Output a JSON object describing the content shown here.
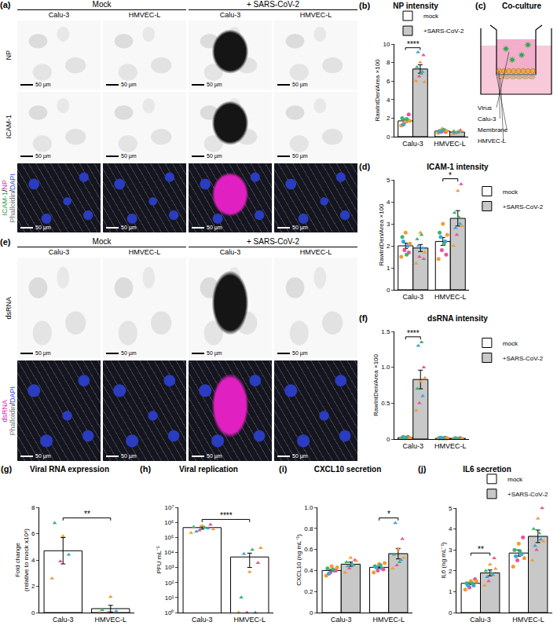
{
  "image_panels": [
    {
      "panel": "(a)",
      "groups": [
        "Mock",
        "+ SARS-CoV-2"
      ],
      "columns": [
        "Calu-3",
        "HMVEC-L",
        "Calu-3",
        "HMVEC-L"
      ],
      "rows": [
        [
          "NP"
        ],
        [
          "ICAM-1"
        ],
        [
          "ICAM-1/NP",
          "Phalloidin/DAPI"
        ]
      ],
      "scale_bar": "50 µm"
    },
    {
      "panel": "(e)",
      "groups": [
        "Mock",
        "+ SARS-CoV-2"
      ],
      "columns": [
        "Calu-3",
        "HMVEC-L",
        "Calu-3",
        "HMVEC-L"
      ],
      "rows": [
        [
          "dsRNA"
        ],
        [
          "dsRNA",
          "Phalloidin/DAPI"
        ]
      ],
      "scale_bar": "50 µm"
    }
  ],
  "diagram": {
    "panel": "(c)",
    "title": "Co-culture",
    "labels": {
      "virus": "Virus",
      "cells": "Calu-3",
      "membrane": "Membrane",
      "endothelium": "HMVEC-L"
    }
  },
  "chart_data": [
    {
      "type": "bar",
      "panel": "(b)",
      "title": "NP intensity",
      "y_label": "RawIntDen/Area ×100",
      "categories": [
        "Calu-3",
        "HMVEC-L"
      ],
      "series": [
        {
          "name": "mock",
          "color": "#ffffff",
          "marker": "circle",
          "values": [
            1.7,
            0.6
          ],
          "errors": [
            0.15,
            0.05
          ],
          "points": [
            [
              1.2,
              1.5,
              1.8,
              2.0,
              1.6,
              2.4,
              1.3,
              1.9,
              1.7
            ],
            [
              0.4,
              0.5,
              0.7,
              0.6,
              0.8,
              0.5,
              0.6,
              0.7,
              0.6
            ]
          ]
        },
        {
          "name": "+SARS-CoV-2",
          "color": "#c8c8c8",
          "marker": "triangle-up",
          "values": [
            7.3,
            0.5
          ],
          "errors": [
            0.45,
            0.05
          ],
          "points": [
            [
              6.0,
              6.5,
              7.0,
              7.5,
              8.0,
              8.8,
              9.1,
              6.8,
              5.9
            ],
            [
              0.3,
              0.4,
              0.5,
              0.6,
              0.5,
              0.7,
              0.4,
              0.5,
              0.6
            ]
          ]
        }
      ],
      "ylim": [
        0,
        10
      ],
      "yticks": [
        0,
        2,
        4,
        6,
        8,
        10
      ],
      "grid": false,
      "legend": "top right",
      "annotations": [
        {
          "category": "Calu-3",
          "text": "****"
        }
      ]
    },
    {
      "type": "bar",
      "panel": "(d)",
      "title": "ICAM-1 intensity",
      "y_label": "RawIntDen/Area ×100",
      "categories": [
        "Calu-3",
        "HMVEC-L"
      ],
      "series": [
        {
          "name": "mock",
          "color": "#ffffff",
          "marker": "circle",
          "values": [
            2.0,
            2.2
          ],
          "errors": [
            0.12,
            0.18
          ],
          "points": [
            [
              1.5,
              1.8,
              2.0,
              2.4,
              2.6,
              1.7,
              2.2,
              1.6,
              2.1
            ],
            [
              1.4,
              1.8,
              2.2,
              2.6,
              3.0,
              1.6,
              2.4,
              2.1,
              2.5
            ]
          ]
        },
        {
          "name": "+SARS-CoV-2",
          "color": "#c8c8c8",
          "marker": "triangle-up",
          "values": [
            1.9,
            3.25
          ],
          "errors": [
            0.16,
            0.35
          ],
          "points": [
            [
              1.2,
              1.5,
              1.9,
              2.3,
              2.6,
              1.4,
              2.0,
              2.5,
              1.7
            ],
            [
              2.0,
              2.5,
              3.0,
              3.5,
              4.5,
              4.8,
              2.8,
              3.3,
              2.9
            ]
          ]
        }
      ],
      "ylim": [
        0,
        5
      ],
      "yticks": [
        0,
        1,
        2,
        3,
        4,
        5
      ],
      "grid": false,
      "legend": "right",
      "annotations": [
        {
          "category": "HMVEC-L",
          "text": "*"
        }
      ]
    },
    {
      "type": "bar",
      "panel": "(f)",
      "title": "dsRNA intensity",
      "y_label": "RawIntDen/Area ×100",
      "categories": [
        "Calu-3",
        "HMVEC-L"
      ],
      "series": [
        {
          "name": "mock",
          "color": "#ffffff",
          "marker": "circle",
          "values": [
            0.02,
            0.01
          ],
          "errors": [
            0.003,
            0.002
          ],
          "points": [
            [
              0.01,
              0.02,
              0.03,
              0.02,
              0.01,
              0.02,
              0.03,
              0.02,
              0.01
            ],
            [
              0.01,
              0.01,
              0.02,
              0.01,
              0.01,
              0.01,
              0.02,
              0.01,
              0.01
            ]
          ]
        },
        {
          "name": "+SARS-CoV-2",
          "color": "#c8c8c8",
          "marker": "triangle-up",
          "values": [
            0.83,
            0.01
          ],
          "errors": [
            0.13,
            0.002
          ],
          "points": [
            [
              0.4,
              0.5,
              0.6,
              0.7,
              0.8,
              1.0,
              1.3,
              1.35,
              0.85
            ],
            [
              0.01,
              0.01,
              0.02,
              0.01,
              0.01,
              0.01,
              0.02,
              0.01,
              0.01
            ]
          ]
        }
      ],
      "ylim": [
        0,
        1.5
      ],
      "yticks": [
        0,
        0.5,
        {
          "value": 1,
          "label": "1.0"
        },
        1.5
      ],
      "grid": false,
      "legend": "right",
      "annotations": [
        {
          "category": "Calu-3",
          "text": "****"
        }
      ]
    },
    {
      "type": "bar",
      "panel": "(g)",
      "title": "Viral RNA expression",
      "y_label": "Fold change\n(relative to mock x10⁴)",
      "categories": [
        "Calu-3",
        "HMVEC-L"
      ],
      "series": [
        {
          "color": "#ffffff",
          "marker": "triangle-up",
          "values": [
            4.7,
            0.3
          ],
          "errors": [
            1.0,
            0.25
          ],
          "points": [
            [
              2.6,
              3.9,
              4.4,
              6.8,
              5.8
            ],
            [
              0,
              0,
              0.1,
              0.2,
              1.2
            ]
          ]
        }
      ],
      "ylim": [
        0,
        8
      ],
      "yticks": [
        0,
        2,
        4,
        6,
        8
      ],
      "grid": false,
      "annotations": [
        {
          "categories": [
            "Calu-3",
            "HMVEC-L"
          ],
          "text": "**"
        }
      ]
    },
    {
      "type": "bar",
      "panel": "(h)",
      "title": "Viral replication",
      "y_label": "PFU mL⁻¹",
      "categories": [
        "Calu-3",
        "HMVEC-L"
      ],
      "log": true,
      "series": [
        {
          "color": "#ffffff",
          "marker": "triangle-up",
          "values": [
            450000,
            5000
          ],
          "errors": [
            100000,
            4000
          ],
          "points": [
            [
              200000,
              300000,
              400000,
              500000,
              600000,
              700000,
              250000,
              450000,
              350000
            ],
            [
              1,
              1,
              1,
              10,
              500,
              2000,
              8000,
              15000,
              20000
            ]
          ]
        }
      ],
      "ylim": [
        1,
        10000000
      ],
      "yticks": [
        {
          "value": 1,
          "label": "10⁰"
        },
        {
          "value": 10,
          "label": "10¹"
        },
        {
          "value": 100,
          "label": "10²"
        },
        {
          "value": 1000,
          "label": "10³"
        },
        {
          "value": 10000,
          "label": "10⁴"
        },
        {
          "value": 100000,
          "label": "10⁵"
        },
        {
          "value": 1000000,
          "label": "10⁶"
        },
        {
          "value": 10000000,
          "label": "10⁷"
        }
      ],
      "grid": false,
      "annotations": [
        {
          "categories": [
            "Calu-3",
            "HMVEC-L"
          ],
          "text": "****"
        }
      ]
    },
    {
      "type": "bar",
      "panel": "(i)",
      "title": "CXCL10 secretion",
      "y_label": "CXCL10 (ng mL⁻¹)",
      "categories": [
        "Calu-3",
        "HMVEC-L"
      ],
      "series": [
        {
          "color": "#ffffff",
          "marker": "circle",
          "values": [
            0.4,
            0.43
          ],
          "errors": [
            0.01,
            0.01
          ],
          "points": [
            [
              0.35,
              0.38,
              0.4,
              0.42,
              0.44,
              0.4,
              0.37,
              0.41,
              0.43
            ],
            [
              0.38,
              0.4,
              0.42,
              0.44,
              0.46,
              0.41,
              0.43,
              0.45,
              0.47
            ]
          ]
        },
        {
          "color": "#c8c8c8",
          "marker": "triangle-up",
          "values": [
            0.46,
            0.56
          ],
          "errors": [
            0.02,
            0.05
          ],
          "points": [
            [
              0.38,
              0.42,
              0.45,
              0.48,
              0.52,
              0.5,
              0.44,
              0.46,
              0.49
            ],
            [
              0.42,
              0.45,
              0.5,
              0.55,
              0.6,
              0.7,
              0.85,
              0.48,
              0.52
            ]
          ]
        }
      ],
      "ylim": [
        0,
        1
      ],
      "yticks": [
        0,
        0.2,
        0.4,
        0.6,
        0.8,
        {
          "value": 1,
          "label": "1.0"
        }
      ],
      "grid": false,
      "annotations": [
        {
          "category": "HMVEC-L",
          "text": "*"
        }
      ]
    },
    {
      "type": "bar",
      "panel": "(j)",
      "title": "IL6 secretion",
      "y_label": "IL6 (ng mL⁻¹)",
      "categories": [
        "Calu-3",
        "HMVEC-L"
      ],
      "series": [
        {
          "name": "mock",
          "color": "#ffffff",
          "marker": "circle",
          "values": [
            1.4,
            2.85
          ],
          "errors": [
            0.06,
            0.15
          ],
          "points": [
            [
              1.1,
              1.2,
              1.3,
              1.4,
              1.5,
              1.6,
              1.3,
              1.4,
              1.5
            ],
            [
              2.2,
              2.5,
              2.8,
              3.0,
              3.3,
              3.6,
              2.7,
              2.9,
              2.6
            ]
          ]
        },
        {
          "name": "+SARS-CoV-2",
          "color": "#c8c8c8",
          "marker": "triangle-up",
          "values": [
            1.9,
            3.65
          ],
          "errors": [
            0.14,
            0.3
          ],
          "points": [
            [
              1.3,
              1.5,
              1.8,
              2.0,
              2.3,
              2.6,
              1.7,
              1.9,
              2.1
            ],
            [
              2.5,
              3.0,
              3.5,
              4.0,
              4.5,
              5.0,
              3.2,
              3.8,
              3.4
            ]
          ]
        }
      ],
      "ylim": [
        0,
        5
      ],
      "yticks": [
        0,
        1,
        2,
        3,
        4,
        5
      ],
      "grid": false,
      "legend": "top right",
      "annotations": [
        {
          "category": "Calu-3",
          "text": "**"
        }
      ]
    }
  ]
}
